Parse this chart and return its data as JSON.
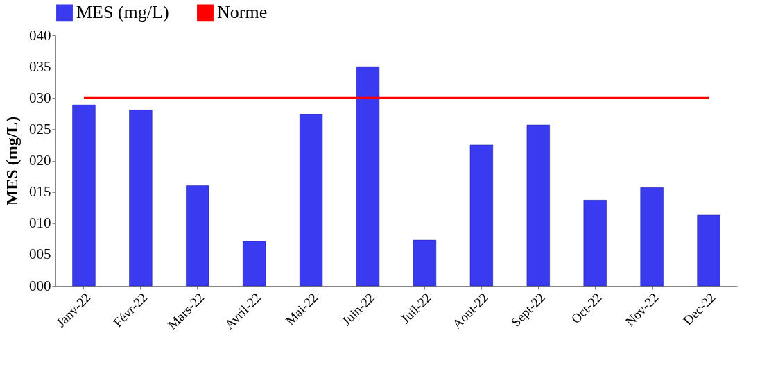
{
  "chart_data": {
    "type": "bar",
    "ylabel": "MES (mg/L)",
    "categories": [
      "Janv-22",
      "Févr-22",
      "Mars-22",
      "Avril-22",
      "Mai-22",
      "Juin-22",
      "Juil-22",
      "Aout-22",
      "Sept-22",
      "Oct-22",
      "Nov-22",
      "Dec-22"
    ],
    "series": [
      {
        "name": "MES  (mg/L)",
        "color": "#3a3af0",
        "values": [
          28.9,
          28.1,
          16.0,
          7.1,
          27.4,
          35.0,
          7.3,
          22.5,
          25.7,
          13.7,
          15.7,
          11.3
        ]
      },
      {
        "name": "Norme",
        "type": "line",
        "color": "#ff0000",
        "values": [
          30,
          30,
          30,
          30,
          30,
          30,
          30,
          30,
          30,
          30,
          30,
          30
        ]
      }
    ],
    "ylim": [
      0,
      40
    ],
    "yticks": [
      {
        "value": 0,
        "label": "000"
      },
      {
        "value": 5,
        "label": "005"
      },
      {
        "value": 10,
        "label": "010"
      },
      {
        "value": 15,
        "label": "015"
      },
      {
        "value": 20,
        "label": "020"
      },
      {
        "value": 25,
        "label": "025"
      },
      {
        "value": 30,
        "label": "030"
      },
      {
        "value": 35,
        "label": "035"
      },
      {
        "value": 40,
        "label": "040"
      }
    ],
    "grid": false,
    "legend": "top",
    "marker": "none"
  }
}
